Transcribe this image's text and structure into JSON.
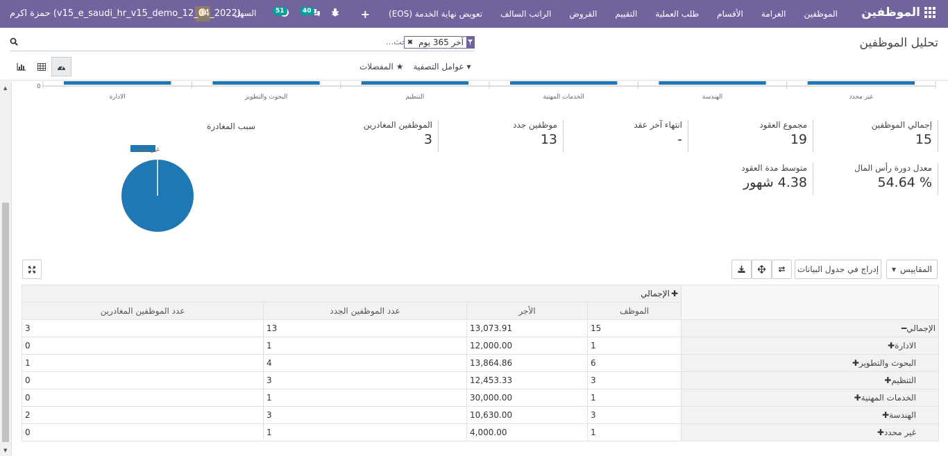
{
  "navbar": {
    "brand": "الموظفين",
    "menu": [
      "الموظفين",
      "الغرامة",
      "الأقسام",
      "طلب العملية",
      "التقييم",
      "القروض",
      "الراتب السالف",
      "تعويض نهاية الخدمة (EOS)"
    ],
    "new_icon": "plus-icon",
    "systray": {
      "company": "السهل",
      "activity_count": "51",
      "messages_count": "40",
      "user_name": "حمزة اكرم",
      "database": "(v15_e_saudi_hr_v15_demo_12_04_2022)"
    }
  },
  "control_panel": {
    "title": "تحليل الموظفين",
    "search": {
      "placeholder": "بحث...",
      "facet_value": "آخر 365 يوم"
    },
    "filters_label": "عوامل التصفية",
    "favorites_label": "المفضلات"
  },
  "chart_data": [
    {
      "type": "bar",
      "categories": [
        "غير محدد",
        "الهندسة",
        "الخدمات المهنية",
        "التنظيم",
        "البحوث والتطوير",
        "الادارة"
      ],
      "ytick_visible": "0"
    },
    {
      "type": "pie",
      "title": "سبب المغادرة",
      "labels": [
        "غير محدد"
      ],
      "values": [
        100
      ],
      "colors": [
        "#1f77b4"
      ]
    }
  ],
  "kpis": [
    {
      "label": "إجمالي الموظفين",
      "value": "15"
    },
    {
      "label": "مجموع العقود",
      "value": "19"
    },
    {
      "label": "انتهاء آخر عقد",
      "value": "-"
    },
    {
      "label": "موظفين جدد",
      "value": "13"
    },
    {
      "label": "الموظفين المغادرين",
      "value": "3"
    },
    {
      "label": "معدل دورة رأس المال",
      "value": "% 54.64"
    },
    {
      "label": "متوسط مدة العقود",
      "value": "4.38 شهور"
    }
  ],
  "pivot": {
    "measures_label": "المقاييس",
    "insert_label": "إدراج في جدول البيانات",
    "total_label": "الإجمالي",
    "columns": [
      "الموظف",
      "الأجر",
      "عدد الموظفين الجدد",
      "عدد الموظفين المغادرين"
    ],
    "rows": [
      {
        "label": "الإجمالي",
        "values": [
          "15",
          "13,073.91",
          "13",
          "3"
        ]
      },
      {
        "label": "الادارة",
        "values": [
          "1",
          "12,000.00",
          "1",
          "0"
        ]
      },
      {
        "label": "البحوث والتطوير",
        "values": [
          "6",
          "13,864.86",
          "4",
          "1"
        ]
      },
      {
        "label": "التنظيم",
        "values": [
          "3",
          "12,453.33",
          "3",
          "0"
        ]
      },
      {
        "label": "الخدمات المهنية",
        "values": [
          "1",
          "30,000.00",
          "1",
          "0"
        ]
      },
      {
        "label": "الهندسة",
        "values": [
          "3",
          "10,630.00",
          "3",
          "2"
        ]
      },
      {
        "label": "غير محدد",
        "values": [
          "1",
          "4,000.00",
          "1",
          "0"
        ]
      }
    ]
  },
  "colors": {
    "navbar": "#71639e",
    "accent": "#1f77b4",
    "badge": "#00a09d"
  }
}
